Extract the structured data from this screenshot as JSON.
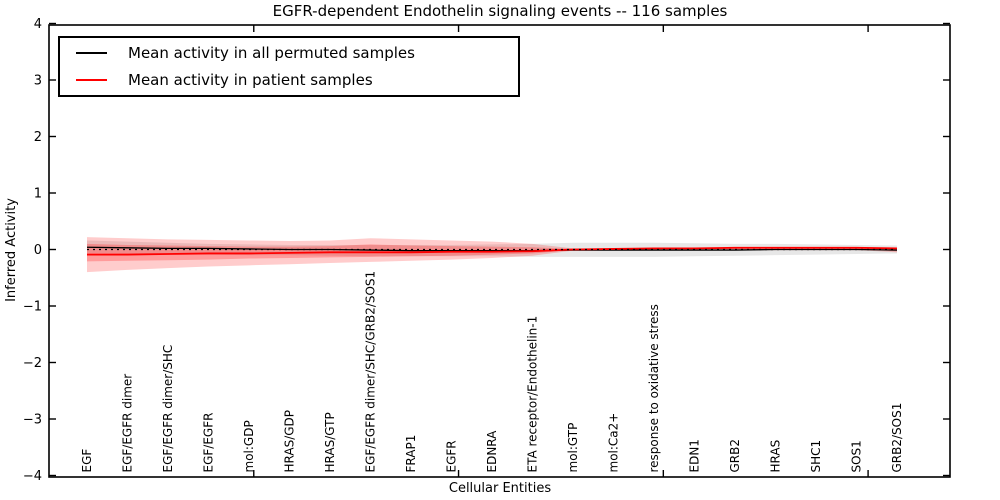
{
  "chart": {
    "title": "EGFR-dependent Endothelin signaling events -- 116 samples",
    "xlabel": "Cellular Entities",
    "ylabel": "Inferred Activity"
  },
  "legend": {
    "items": [
      {
        "label": "Mean activity in all permuted samples",
        "color": "#000000"
      },
      {
        "label": "Mean activity in patient samples",
        "color": "#ff0000"
      }
    ]
  },
  "chart_data": {
    "type": "line",
    "title": "EGFR-dependent Endothelin signaling events -- 116 samples",
    "xlabel": "Cellular Entities",
    "ylabel": "Inferred Activity",
    "ylim": [
      -4,
      4
    ],
    "xlim": [
      0,
      22
    ],
    "grid": false,
    "legend_position": "upper left",
    "yticks": [
      {
        "value": 4,
        "label": "4"
      },
      {
        "value": 3,
        "label": "3"
      },
      {
        "value": 2,
        "label": "2"
      },
      {
        "value": 1,
        "label": "1"
      },
      {
        "value": 0,
        "label": "0"
      },
      {
        "value": -1,
        "label": "−1"
      },
      {
        "value": -2,
        "label": "−2"
      },
      {
        "value": -3,
        "label": "−3"
      },
      {
        "value": -4,
        "label": "−4"
      }
    ],
    "xticks_unlabeled": [
      5,
      10,
      15,
      20
    ],
    "categories": [
      "EGF",
      "EGF/EGFR dimer",
      "EGF/EGFR dimer/SHC",
      "EGF/EGFR",
      "mol:GDP",
      "HRAS/GDP",
      "HRAS/GTP",
      "EGF/EGFR dimer/SHC/GRB2/SOS1",
      "FRAP1",
      "EGFR",
      "EDNRA",
      "ETA receptor/Endothelin-1",
      "mol:GTP",
      "mol:Ca2+",
      "response to oxidative stress",
      "EDN1",
      "GRB2",
      "HRAS",
      "SHC1",
      "SOS1",
      "GRB2/SOS1"
    ],
    "series": [
      {
        "name": "Mean activity in all permuted samples",
        "color": "#000000",
        "style": "solid",
        "values": [
          0.04,
          0.03,
          0.02,
          0.02,
          0.01,
          0.0,
          0.0,
          -0.01,
          -0.02,
          -0.02,
          -0.02,
          -0.02,
          -0.01,
          -0.01,
          -0.01,
          -0.01,
          -0.01,
          0.0,
          0.0,
          0.0,
          -0.01
        ]
      },
      {
        "name": "Mean activity in patient samples",
        "color": "#ff0000",
        "style": "solid",
        "values": [
          -0.09,
          -0.09,
          -0.08,
          -0.07,
          -0.07,
          -0.06,
          -0.05,
          -0.05,
          -0.05,
          -0.04,
          -0.04,
          -0.03,
          0.0,
          0.01,
          0.02,
          0.02,
          0.03,
          0.03,
          0.03,
          0.03,
          0.02
        ]
      },
      {
        "name": "zero reference",
        "color": "#000000",
        "style": "dotted",
        "values": [
          0,
          0,
          0,
          0,
          0,
          0,
          0,
          0,
          0,
          0,
          0,
          0,
          0,
          0,
          0,
          0,
          0,
          0,
          0,
          0,
          0
        ]
      }
    ],
    "bands": [
      {
        "name": "permuted samples band",
        "color": "#787878",
        "alpha": 0.18,
        "upper": [
          0.16,
          0.14,
          0.12,
          0.1,
          0.09,
          0.08,
          0.08,
          0.08,
          0.08,
          0.08,
          0.09,
          0.1,
          0.12,
          0.12,
          0.12,
          0.11,
          0.1,
          0.1,
          0.09,
          0.08,
          0.07
        ],
        "lower": [
          -0.06,
          -0.07,
          -0.08,
          -0.09,
          -0.1,
          -0.1,
          -0.11,
          -0.12,
          -0.12,
          -0.12,
          -0.12,
          -0.13,
          -0.13,
          -0.13,
          -0.13,
          -0.12,
          -0.11,
          -0.1,
          -0.09,
          -0.08,
          -0.07
        ]
      },
      {
        "name": "patient samples outer band",
        "color": "#ff0000",
        "alpha": 0.2,
        "upper": [
          0.22,
          0.2,
          0.18,
          0.17,
          0.16,
          0.15,
          0.16,
          0.2,
          0.18,
          0.16,
          0.14,
          0.1,
          0.02,
          0.01,
          0.01,
          0.01,
          0.01,
          0.01,
          0.01,
          0.01,
          0.03
        ],
        "lower": [
          -0.4,
          -0.36,
          -0.33,
          -0.3,
          -0.28,
          -0.26,
          -0.24,
          -0.22,
          -0.2,
          -0.18,
          -0.15,
          -0.11,
          -0.02,
          -0.01,
          -0.01,
          -0.01,
          -0.01,
          -0.01,
          -0.01,
          -0.01,
          -0.05
        ]
      },
      {
        "name": "patient samples inner band",
        "color": "#ff0000",
        "alpha": 0.24,
        "upper": [
          0.1,
          0.08,
          0.07,
          0.06,
          0.05,
          0.05,
          0.06,
          0.09,
          0.07,
          0.06,
          0.05,
          0.04,
          0.01,
          0.0,
          0.0,
          0.0,
          0.0,
          0.0,
          0.0,
          0.0,
          0.01
        ],
        "lower": [
          -0.21,
          -0.2,
          -0.19,
          -0.18,
          -0.16,
          -0.15,
          -0.14,
          -0.13,
          -0.12,
          -0.11,
          -0.09,
          -0.07,
          -0.01,
          0.0,
          0.0,
          0.0,
          0.0,
          0.0,
          0.0,
          0.0,
          -0.03
        ]
      }
    ]
  }
}
